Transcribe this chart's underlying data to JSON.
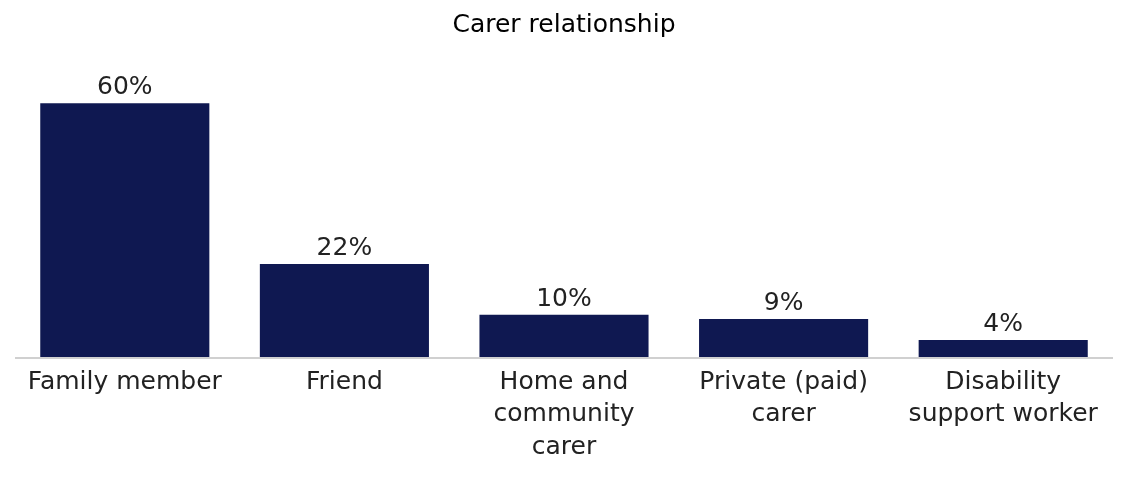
{
  "chart_data": {
    "type": "bar",
    "title": "Carer relationship",
    "categories": [
      "Family member",
      "Friend",
      "Home and community carer",
      "Private (paid) carer",
      "Disability support worker"
    ],
    "values": [
      60,
      22,
      10,
      9,
      4
    ],
    "value_labels": [
      "60%",
      "22%",
      "10%",
      "9%",
      "4%"
    ],
    "color": "#0f1851",
    "grid": false,
    "legend": false
  }
}
